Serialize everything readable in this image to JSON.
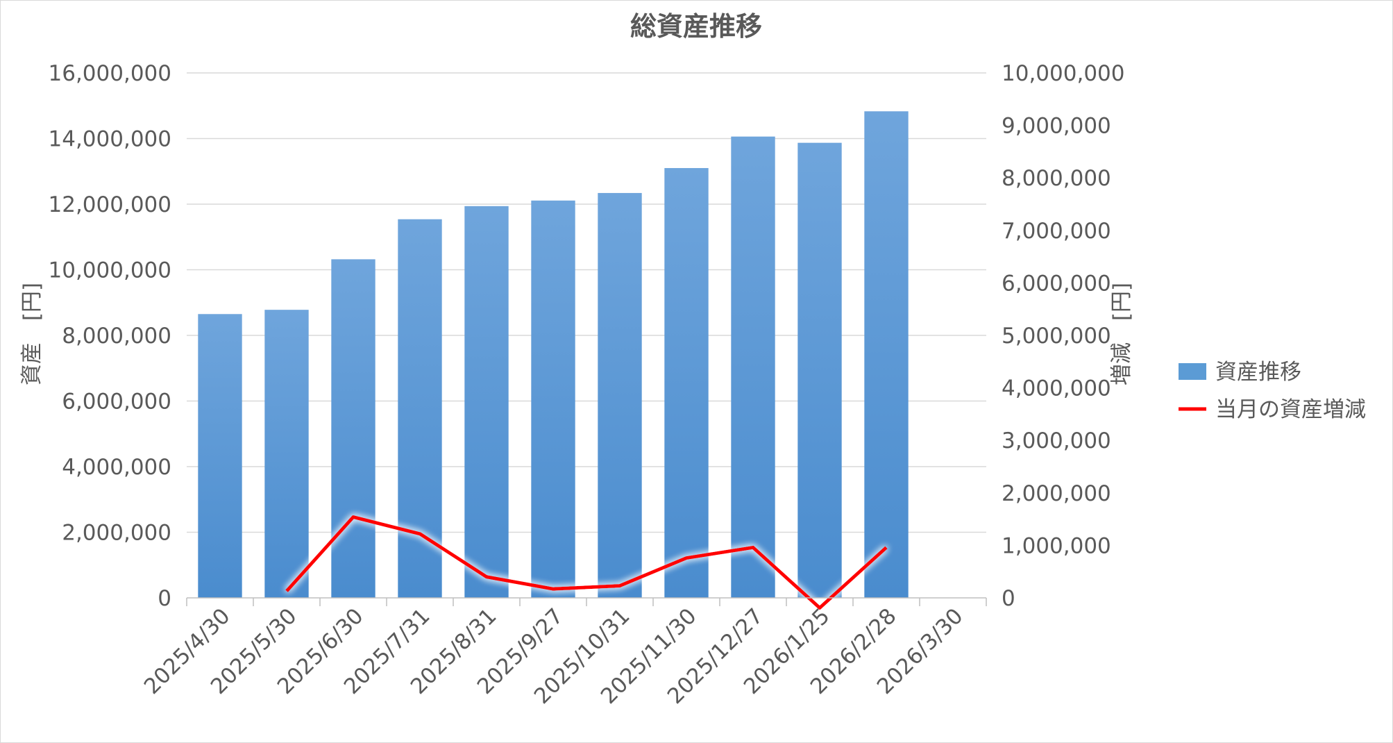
{
  "chart_data": {
    "type": "bar",
    "title": "総資産推移",
    "categories": [
      "2025/4/30",
      "2025/5/30",
      "2025/6/30",
      "2025/7/31",
      "2025/8/31",
      "2025/9/27",
      "2025/10/31",
      "2025/11/30",
      "2025/12/27",
      "2026/1/25",
      "2026/2/28",
      "2026/3/30"
    ],
    "series": [
      {
        "name": "資産推移",
        "type": "bar",
        "axis": "left",
        "color": "#5b9bd5",
        "values": [
          8650000,
          8780000,
          10320000,
          11540000,
          11940000,
          12110000,
          12340000,
          13100000,
          14060000,
          13870000,
          14830000,
          null
        ]
      },
      {
        "name": "当月の資産増減",
        "type": "line",
        "axis": "right",
        "color": "#ff0000",
        "values": [
          null,
          130000,
          1540000,
          1220000,
          400000,
          170000,
          230000,
          760000,
          960000,
          -190000,
          960000,
          null
        ]
      }
    ],
    "ylabel": "資産　[円]",
    "y2label": "増減　[円]",
    "ylim": [
      0,
      16000000
    ],
    "y2lim": [
      0,
      10000000
    ],
    "yticks": [
      "0",
      "2,000,000",
      "4,000,000",
      "6,000,000",
      "8,000,000",
      "10,000,000",
      "12,000,000",
      "14,000,000",
      "16,000,000"
    ],
    "y2ticks": [
      "0",
      "1,000,000",
      "2,000,000",
      "3,000,000",
      "4,000,000",
      "5,000,000",
      "6,000,000",
      "7,000,000",
      "8,000,000",
      "9,000,000",
      "10,000,000"
    ],
    "grid": true,
    "legend_position": "right"
  }
}
